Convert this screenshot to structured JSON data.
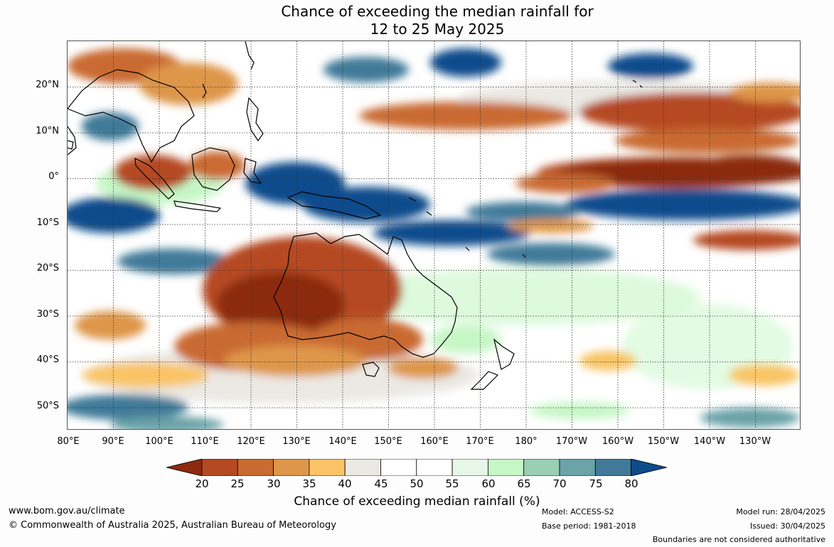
{
  "title": {
    "line1": "Chance of exceeding the median rainfall for",
    "line2": "12 to 25 May 2025"
  },
  "map": {
    "lat_labels": [
      "20°N",
      "10°N",
      "0°",
      "10°S",
      "20°S",
      "30°S",
      "40°S",
      "50°S"
    ],
    "lon_labels": [
      "80°E",
      "90°E",
      "100°E",
      "110°E",
      "120°E",
      "130°E",
      "140°E",
      "150°E",
      "160°E",
      "170°E",
      "180°",
      "170°W",
      "160°W",
      "150°W",
      "140°W",
      "130°W"
    ],
    "lon_range": [
      80,
      240
    ],
    "lat_range": [
      -55,
      30
    ]
  },
  "legend": {
    "ticks": [
      "20",
      "25",
      "30",
      "35",
      "40",
      "45",
      "50",
      "55",
      "60",
      "65",
      "70",
      "75",
      "80"
    ],
    "colors": [
      "#8c2a10",
      "#b54a22",
      "#c96a30",
      "#de9648",
      "#fac466",
      "#ebe9e4",
      "#ffffff",
      "#ffffff",
      "#e7f7e7",
      "#c6f7c6",
      "#98cfb5",
      "#6aa3a8",
      "#417a99",
      "#0e4c8c"
    ],
    "label": "Chance of exceeding median rainfall (%)"
  },
  "footer": {
    "url": "www.bom.gov.au/climate",
    "copyright": "© Commonwealth of Australia 2025, Australian Bureau of Meteorology",
    "model": "Model: ACCESS-S2",
    "base_period": "Base period: 1981-2018",
    "model_run": "Model run: 28/04/2025",
    "issued": "Issued: 30/04/2025",
    "disclaimer": "Boundaries are not considered authoritative"
  }
}
